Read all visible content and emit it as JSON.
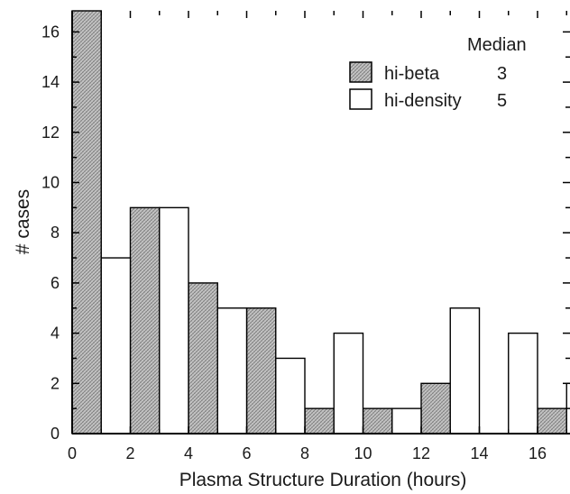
{
  "chart_data": {
    "type": "bar",
    "xlabel": "Plasma Structure Duration (hours)",
    "ylabel": "# cases",
    "xlim": [
      0,
      19
    ],
    "ylim": [
      0,
      17
    ],
    "x_ticks": [
      0,
      2,
      4,
      6,
      8,
      10,
      12,
      14,
      16
    ],
    "y_ticks": [
      0,
      2,
      4,
      6,
      8,
      10,
      12,
      14,
      16
    ],
    "legend_title": "Median",
    "legend_position": "top-right",
    "series": [
      {
        "name": "hi-beta",
        "median": "3",
        "fill": "hatched-gray",
        "bins": [
          [
            0,
            1
          ],
          [
            2,
            3
          ],
          [
            4,
            5
          ],
          [
            6,
            7
          ],
          [
            8,
            9
          ],
          [
            10,
            11
          ],
          [
            12,
            13
          ],
          [
            16,
            17
          ]
        ],
        "values": [
          17,
          9,
          6,
          5,
          1,
          1,
          2,
          1
        ]
      },
      {
        "name": "hi-density",
        "median": "5",
        "fill": "white",
        "bins": [
          [
            1,
            2
          ],
          [
            3,
            4
          ],
          [
            5,
            6
          ],
          [
            7,
            8
          ],
          [
            9,
            10
          ],
          [
            11,
            12
          ],
          [
            13,
            14
          ],
          [
            15,
            16
          ],
          [
            17,
            18
          ]
        ],
        "values": [
          7,
          9,
          5,
          3,
          4,
          1,
          5,
          4,
          2
        ]
      }
    ]
  }
}
